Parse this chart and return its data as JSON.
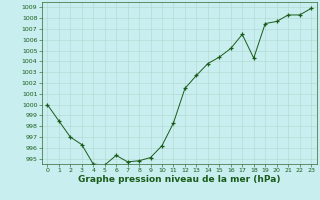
{
  "x": [
    0,
    1,
    2,
    3,
    4,
    5,
    6,
    7,
    8,
    9,
    10,
    11,
    12,
    13,
    14,
    15,
    16,
    17,
    18,
    19,
    20,
    21,
    22,
    23
  ],
  "y": [
    1000.0,
    998.5,
    997.0,
    996.3,
    994.5,
    994.4,
    995.3,
    994.7,
    994.8,
    995.1,
    996.2,
    998.3,
    1001.5,
    1002.7,
    1003.8,
    1004.4,
    1005.2,
    1006.5,
    1004.3,
    1007.5,
    1007.7,
    1008.3,
    1008.3,
    1008.9
  ],
  "ylim_min": 994.5,
  "ylim_max": 1009.5,
  "xlim_min": -0.5,
  "xlim_max": 23.5,
  "yticks": [
    995,
    996,
    997,
    998,
    999,
    1000,
    1001,
    1002,
    1003,
    1004,
    1005,
    1006,
    1007,
    1008,
    1009
  ],
  "xticks": [
    0,
    1,
    2,
    3,
    4,
    5,
    6,
    7,
    8,
    9,
    10,
    11,
    12,
    13,
    14,
    15,
    16,
    17,
    18,
    19,
    20,
    21,
    22,
    23
  ],
  "line_color": "#1a5c1a",
  "marker_color": "#1a5c1a",
  "bg_color": "#c8eef0",
  "grid_color": "#b0d8cc",
  "text_color": "#1a5c1a",
  "xlabel": "Graphe pression niveau de la mer (hPa)",
  "tick_fontsize": 4.5,
  "label_fontsize": 6.5,
  "spine_color": "#336633"
}
